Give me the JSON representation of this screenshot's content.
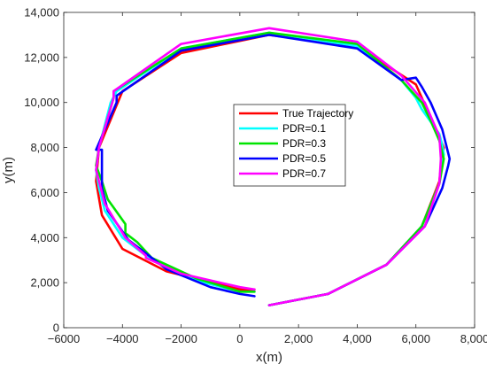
{
  "chart_data": {
    "type": "line",
    "title": "",
    "xlabel": "x(m)",
    "ylabel": "y(m)",
    "xlim": [
      -6000,
      8000
    ],
    "ylim": [
      0,
      14000
    ],
    "xticks": [
      -6000,
      -4000,
      -2000,
      0,
      2000,
      4000,
      6000,
      8000
    ],
    "xtick_labels": [
      "−6000",
      "−4000",
      "−2000",
      "0",
      "2,000",
      "4,000",
      "6,000",
      "8,000"
    ],
    "yticks": [
      0,
      2000,
      4000,
      6000,
      8000,
      10000,
      12000,
      14000
    ],
    "ytick_labels": [
      "0",
      "2,000",
      "4,000",
      "6,000",
      "8,000",
      "10,000",
      "12,000",
      "14,000"
    ],
    "grid": false,
    "legend_position": "center-right",
    "series": [
      {
        "name": "True Trajectory",
        "color": "#ff0000",
        "x": [
          1000,
          3000,
          5000,
          6200,
          6800,
          6900,
          6950,
          6850,
          6000,
          4000,
          1000,
          -2000,
          -4000,
          -4800,
          -4900,
          -4700,
          -4000,
          -2500,
          0,
          500
        ],
        "y": [
          1000,
          1500,
          2800,
          4500,
          6500,
          7700,
          8000,
          8300,
          10800,
          12500,
          13000,
          12200,
          10500,
          8000,
          6500,
          5000,
          3500,
          2500,
          1700,
          1700
        ]
      },
      {
        "name": "PDR=0.1",
        "color": "#00ffff",
        "x": [
          1000,
          3000,
          5000,
          6200,
          6800,
          6900,
          6950,
          6900,
          6800,
          6200,
          6000,
          5500,
          4000,
          1000,
          -2000,
          -4200,
          -4400,
          -4800,
          -4900,
          -4800,
          -4600,
          -4000,
          -3000,
          -1500,
          0,
          500
        ],
        "y": [
          1000,
          1500,
          2800,
          4500,
          6400,
          7300,
          7700,
          8100,
          8600,
          9700,
          10200,
          11000,
          12500,
          13100,
          12400,
          10500,
          10000,
          8000,
          7000,
          6200,
          5200,
          4000,
          3000,
          2100,
          1600,
          1600
        ]
      },
      {
        "name": "PDR=0.3",
        "color": "#00e400",
        "x": [
          1000,
          3000,
          5000,
          6200,
          6800,
          6950,
          6800,
          6500,
          6200,
          5500,
          4000,
          1000,
          -2000,
          -4300,
          -4300,
          -4800,
          -4900,
          -4700,
          -4500,
          -3900,
          -3900,
          -3500,
          -3000,
          -1500,
          0,
          500
        ],
        "y": [
          1000,
          1500,
          2800,
          4500,
          6400,
          7500,
          8300,
          9200,
          10000,
          11000,
          12600,
          13100,
          12400,
          10500,
          10200,
          8000,
          7200,
          6500,
          5700,
          4600,
          4200,
          3800,
          3100,
          2200,
          1600,
          1600
        ]
      },
      {
        "name": "PDR=0.5",
        "color": "#0000ff",
        "x": [
          1000,
          3000,
          5000,
          6300,
          6900,
          7100,
          7150,
          6900,
          6500,
          6200,
          6000,
          5500,
          4000,
          1000,
          -2000,
          -4200,
          -4200,
          -4900,
          -4700,
          -4700,
          -4500,
          -3800,
          -2500,
          -1000,
          0,
          500
        ],
        "y": [
          1000,
          1500,
          2800,
          4500,
          6200,
          7200,
          7500,
          8800,
          10000,
          10700,
          11100,
          11000,
          12400,
          13000,
          12300,
          10300,
          10000,
          7900,
          7900,
          6200,
          5200,
          3900,
          2600,
          1800,
          1500,
          1400
        ]
      },
      {
        "name": "PDR=0.7",
        "color": "#ff00ff",
        "x": [
          1000,
          3000,
          5000,
          6300,
          6800,
          6850,
          6800,
          6300,
          5500,
          4000,
          1000,
          -2000,
          -4300,
          -4300,
          -4800,
          -4900,
          -4600,
          -3900,
          -3200,
          -3200,
          -2000,
          0,
          500
        ],
        "y": [
          1000,
          1500,
          2800,
          4500,
          6400,
          7500,
          8500,
          10000,
          11200,
          12700,
          13300,
          12600,
          10500,
          10200,
          8000,
          7000,
          5500,
          4000,
          3200,
          3100,
          2400,
          1800,
          1700
        ]
      }
    ]
  }
}
